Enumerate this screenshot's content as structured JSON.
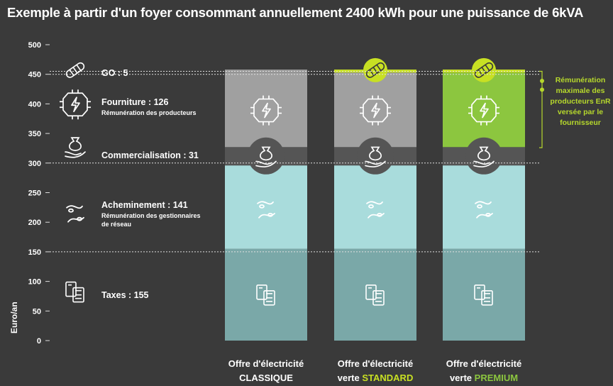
{
  "title": "Exemple à partir d'un foyer consommant annuellement 2400 kWh pour une puissance de 6kVA",
  "colors": {
    "background": "#3a3a3a",
    "taxes": "#7aa8a8",
    "acheminement": "#a9dcdc",
    "commercialisation": "#555555",
    "fourniture_grey": "#a0a0a0",
    "fourniture_premium": "#8cc63f",
    "go": "#c8e023",
    "text_white": "#ffffff",
    "accent_green": "#b6d82c"
  },
  "chart_data": {
    "type": "bar",
    "stacked": true,
    "ylabel": "Euro/an",
    "ylim": [
      0,
      500
    ],
    "yticks": [
      0,
      50,
      100,
      150,
      200,
      250,
      300,
      350,
      400,
      450,
      500
    ],
    "categories": [
      {
        "line1": "Offre d'électricité",
        "line2": "CLASSIQUE",
        "line2_color": "#ffffff"
      },
      {
        "line1": "Offre d'électricité",
        "line2_prefix": "verte ",
        "line2": "STANDARD",
        "line2_color": "#c8e023"
      },
      {
        "line1": "Offre d'électricité",
        "line2_prefix": "verte ",
        "line2": "PREMIUM",
        "line2_color": "#8cc63f"
      }
    ],
    "series": [
      {
        "key": "taxes",
        "label": "Taxes : 155",
        "sublabel": "",
        "values": [
          155,
          155,
          155
        ],
        "icon": "calculator-icon"
      },
      {
        "key": "acheminement",
        "label": "Acheminement : 141",
        "sublabel": "Rémunération des gestionnaires de réseau",
        "values": [
          141,
          141,
          141
        ],
        "icon": "cable-plug-icon"
      },
      {
        "key": "commercialisation",
        "label": "Commercialisation : 31",
        "sublabel": "",
        "values": [
          31,
          31,
          31
        ],
        "icon": "money-bag-hand-icon"
      },
      {
        "key": "fourniture",
        "label": "Fourniture : 126",
        "sublabel": "Rémunération des producteurs",
        "values": [
          126,
          126,
          126
        ],
        "icon": "energy-chip-icon"
      },
      {
        "key": "go",
        "label": "GO : 5",
        "sublabel": "",
        "values": [
          5,
          5,
          5
        ],
        "icon": "certificate-scroll-icon"
      }
    ],
    "annotation": "Rémunération maximale des producteurs EnR versée par le fournisseur",
    "grid": "dashed at 150, 300, 450"
  }
}
